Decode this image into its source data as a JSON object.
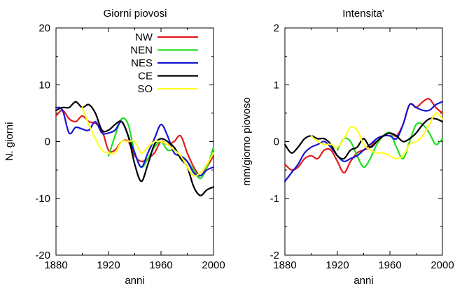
{
  "chart_data": [
    {
      "type": "line",
      "title": "Giorni piovosi",
      "xlabel": "anni",
      "ylabel": "N. giorni",
      "xlim": [
        1880,
        2000
      ],
      "ylim": [
        -20,
        20
      ],
      "xticks": [
        "1880",
        "1920",
        "1960",
        "2000"
      ],
      "yticks": [
        "20",
        "10",
        "0",
        "-10",
        "-20"
      ],
      "legend": "top-right",
      "series": [
        {
          "name": "NW",
          "color": "#e41a1c",
          "x": [
            1880,
            1885,
            1890,
            1895,
            1900,
            1905,
            1910,
            1915,
            1920,
            1925,
            1930,
            1935,
            1940,
            1945,
            1950,
            1955,
            1960,
            1965,
            1970,
            1975,
            1980,
            1985,
            1990,
            1995,
            2000
          ],
          "y": [
            4.5,
            5.5,
            4,
            3.5,
            4.5,
            3.5,
            3.2,
            2,
            -1.5,
            -1.5,
            0,
            0,
            -2.5,
            -3.5,
            -3,
            -2,
            0,
            -0.5,
            0,
            1,
            -2,
            -4.5,
            -6,
            -4.5,
            -2.5
          ]
        },
        {
          "name": "NEN",
          "color": "#22dd22",
          "x": [
            1920,
            1925,
            1930,
            1935,
            1940,
            1945,
            1950,
            1955,
            1960,
            1965,
            1970,
            1975,
            1980,
            1985,
            1990,
            1995,
            2000
          ],
          "y": [
            -2.5,
            1,
            4,
            3,
            -2,
            -4.5,
            -3,
            -1,
            0,
            -1.5,
            -1.5,
            -2.5,
            -3.5,
            -5,
            -6.5,
            -4.5,
            -1
          ]
        },
        {
          "name": "NES",
          "color": "#1515d6",
          "x": [
            1880,
            1885,
            1890,
            1895,
            1900,
            1905,
            1910,
            1915,
            1920,
            1925,
            1930,
            1935,
            1940,
            1945,
            1950,
            1955,
            1960,
            1965,
            1970,
            1975,
            1980,
            1985,
            1990,
            1995,
            2000
          ],
          "y": [
            6,
            5.5,
            1.5,
            2.5,
            2.2,
            2,
            3.5,
            1.5,
            1.5,
            2,
            3.5,
            1,
            -2,
            -4.5,
            -2,
            0.5,
            3,
            1,
            -2,
            -2.5,
            -3.5,
            -5.5,
            -6,
            -5,
            -4.5
          ]
        },
        {
          "name": "CE",
          "color": "#000000",
          "x": [
            1880,
            1885,
            1890,
            1895,
            1900,
            1905,
            1910,
            1915,
            1920,
            1925,
            1930,
            1935,
            1940,
            1945,
            1950,
            1955,
            1960,
            1965,
            1970,
            1975,
            1980,
            1985,
            1990,
            1995,
            2000
          ],
          "y": [
            5.5,
            6,
            6,
            7,
            6,
            6.5,
            5,
            2,
            2,
            3,
            3.5,
            1,
            -4,
            -7,
            -4,
            -0.5,
            0.5,
            0,
            -1,
            -3,
            -4.5,
            -8,
            -9.5,
            -8.5,
            -8
          ]
        },
        {
          "name": "SO",
          "color": "#ffff22",
          "x": [
            1900,
            1905,
            1910,
            1915,
            1920,
            1925,
            1930,
            1935,
            1940,
            1945,
            1950,
            1955,
            1960,
            1965,
            1970,
            1975,
            1980,
            1985,
            1990,
            1995,
            2000
          ],
          "y": [
            6,
            3,
            0.5,
            -1.5,
            -2,
            -2,
            0,
            0,
            0,
            -2,
            -1,
            0,
            0,
            -0.5,
            -1.5,
            -2.5,
            -4.5,
            -6,
            -5.5,
            -4,
            -2
          ]
        }
      ]
    },
    {
      "type": "line",
      "title": "Intensita'",
      "xlabel": "anni",
      "ylabel": "mm/giorno piovoso",
      "xlim": [
        1880,
        2000
      ],
      "ylim": [
        -2,
        2
      ],
      "xticks": [
        "1880",
        "1920",
        "1960",
        "2000"
      ],
      "yticks": [
        "2",
        "1",
        "0",
        "-1",
        "-2"
      ],
      "series": [
        {
          "name": "NW",
          "color": "#e41a1c",
          "x": [
            1880,
            1885,
            1890,
            1895,
            1900,
            1905,
            1910,
            1915,
            1920,
            1925,
            1930,
            1935,
            1940,
            1945,
            1950,
            1955,
            1960,
            1965,
            1970,
            1975,
            1980,
            1985,
            1990,
            1995,
            2000
          ],
          "y": [
            -0.4,
            -0.5,
            -0.45,
            -0.3,
            -0.25,
            -0.3,
            -0.15,
            -0.15,
            -0.35,
            -0.55,
            -0.35,
            -0.2,
            -0.15,
            -0.1,
            0.05,
            0.1,
            0.15,
            0.1,
            0.3,
            0.65,
            0.6,
            0.7,
            0.75,
            0.6,
            0.5
          ]
        },
        {
          "name": "NEN",
          "color": "#22dd22",
          "x": [
            1920,
            1925,
            1930,
            1935,
            1940,
            1945,
            1950,
            1955,
            1960,
            1965,
            1970,
            1975,
            1980,
            1985,
            1990,
            1995,
            2000
          ],
          "y": [
            -0.15,
            0.05,
            0,
            -0.25,
            -0.45,
            -0.3,
            -0.05,
            0.1,
            0.15,
            -0.1,
            -0.3,
            0,
            0.3,
            0.3,
            0.15,
            -0.05,
            0.05
          ]
        },
        {
          "name": "NES",
          "color": "#1515d6",
          "x": [
            1880,
            1885,
            1890,
            1895,
            1900,
            1905,
            1910,
            1915,
            1920,
            1925,
            1930,
            1935,
            1940,
            1945,
            1950,
            1955,
            1960,
            1965,
            1970,
            1975,
            1980,
            1985,
            1990,
            1995,
            2000
          ],
          "y": [
            -0.7,
            -0.55,
            -0.4,
            -0.2,
            -0.1,
            -0.05,
            0,
            -0.1,
            -0.25,
            -0.35,
            -0.3,
            -0.25,
            -0.15,
            -0.05,
            0.05,
            0.1,
            0.1,
            0.05,
            0.3,
            0.65,
            0.6,
            0.55,
            0.55,
            0.65,
            0.7
          ]
        },
        {
          "name": "CE",
          "color": "#000000",
          "x": [
            1880,
            1885,
            1890,
            1895,
            1900,
            1905,
            1910,
            1915,
            1920,
            1925,
            1930,
            1935,
            1940,
            1945,
            1950,
            1955,
            1960,
            1965,
            1970,
            1975,
            1980,
            1985,
            1990,
            1995,
            2000
          ],
          "y": [
            -0.05,
            -0.2,
            -0.1,
            0.05,
            0.1,
            0.05,
            0.05,
            -0.05,
            -0.25,
            -0.3,
            -0.15,
            -0.1,
            0.05,
            -0.1,
            0,
            0.1,
            0.15,
            0.1,
            0,
            0.05,
            0.15,
            0.3,
            0.4,
            0.4,
            0.35
          ]
        },
        {
          "name": "SO",
          "color": "#ffff22",
          "x": [
            1900,
            1905,
            1910,
            1915,
            1920,
            1925,
            1930,
            1935,
            1940,
            1945,
            1950,
            1955,
            1960,
            1965,
            1970,
            1975,
            1980,
            1985,
            1990,
            1995,
            2000
          ],
          "y": [
            0.1,
            0,
            -0.05,
            -0.05,
            -0.1,
            0.05,
            0.25,
            0.2,
            -0.05,
            -0.15,
            -0.2,
            -0.2,
            -0.25,
            -0.3,
            -0.25,
            -0.05,
            0,
            0.1,
            0.3,
            0.5,
            0.4
          ]
        }
      ]
    }
  ]
}
